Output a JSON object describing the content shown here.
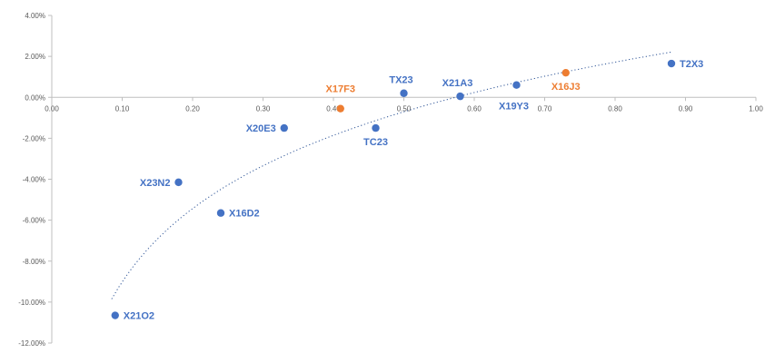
{
  "chart_data": {
    "type": "scatter",
    "title": "",
    "xlabel": "",
    "ylabel": "",
    "xlim": [
      0,
      1
    ],
    "ylim": [
      -12,
      4
    ],
    "x_ticks": [
      {
        "value": 0.0,
        "label": "0.00"
      },
      {
        "value": 0.1,
        "label": "0.10"
      },
      {
        "value": 0.2,
        "label": "0.20"
      },
      {
        "value": 0.3,
        "label": "0.30"
      },
      {
        "value": 0.4,
        "label": "0.40"
      },
      {
        "value": 0.5,
        "label": "0.50"
      },
      {
        "value": 0.6,
        "label": "0.60"
      },
      {
        "value": 0.7,
        "label": "0.70"
      },
      {
        "value": 0.8,
        "label": "0.80"
      },
      {
        "value": 0.9,
        "label": "0.90"
      },
      {
        "value": 1.0,
        "label": "1.00"
      }
    ],
    "y_ticks": [
      {
        "value": 4,
        "label": "4.00%"
      },
      {
        "value": 2,
        "label": "2.00%"
      },
      {
        "value": 0,
        "label": "0.00%"
      },
      {
        "value": -2,
        "label": "-2.00%"
      },
      {
        "value": -4,
        "label": "-4.00%"
      },
      {
        "value": -6,
        "label": "-6.00%"
      },
      {
        "value": -8,
        "label": "-8.00%"
      },
      {
        "value": -10,
        "label": "-10.00%"
      },
      {
        "value": -12,
        "label": "-12.00%"
      }
    ],
    "grid": false,
    "legend": "none",
    "colors": {
      "blue": "#4472C4",
      "orange": "#ED7D31",
      "trendline": "#2F5597",
      "axis": "#BFBFBF"
    },
    "points": [
      {
        "label": "X21O2",
        "x": 0.09,
        "y": -10.65,
        "color": "blue",
        "label_pos": "right"
      },
      {
        "label": "X23N2",
        "x": 0.18,
        "y": -4.15,
        "color": "blue",
        "label_pos": "left"
      },
      {
        "label": "X16D2",
        "x": 0.24,
        "y": -5.65,
        "color": "blue",
        "label_pos": "right"
      },
      {
        "label": "X20E3",
        "x": 0.33,
        "y": -1.5,
        "color": "blue",
        "label_pos": "left"
      },
      {
        "label": "X17F3",
        "x": 0.41,
        "y": -0.55,
        "color": "orange",
        "label_pos": "above-left"
      },
      {
        "label": "TC23",
        "x": 0.46,
        "y": -1.5,
        "color": "blue",
        "label_pos": "below"
      },
      {
        "label": "TX23",
        "x": 0.5,
        "y": 0.2,
        "color": "blue",
        "label_pos": "above"
      },
      {
        "label": "X21A3",
        "x": 0.58,
        "y": 0.05,
        "color": "blue",
        "label_pos": "above"
      },
      {
        "label": "X19Y3",
        "x": 0.66,
        "y": 0.6,
        "color": "blue",
        "label_pos": "below-left"
      },
      {
        "label": "X16J3",
        "x": 0.73,
        "y": 1.2,
        "color": "orange",
        "label_pos": "below"
      },
      {
        "label": "T2X3",
        "x": 0.88,
        "y": 1.65,
        "color": "blue",
        "label_pos": "right"
      }
    ],
    "trendline": {
      "type": "logarithmic",
      "style": "dotted",
      "x_from": 0.085,
      "x_to": 0.88,
      "a": 2.87,
      "b": 5.16
    }
  }
}
